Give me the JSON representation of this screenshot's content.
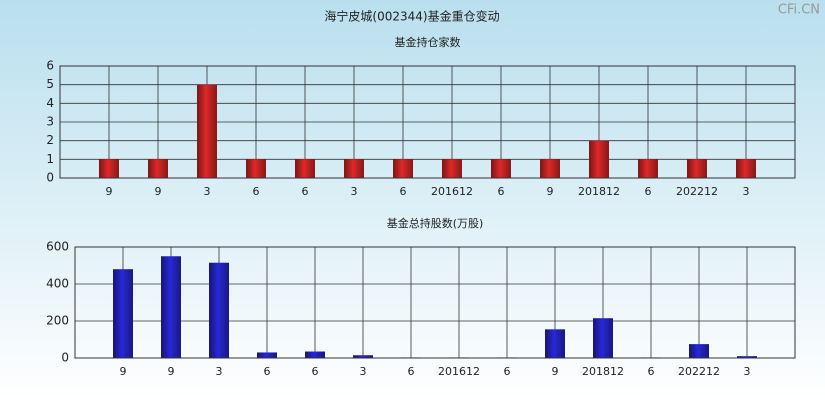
{
  "title": "海宁皮城(002344)基金重仓变动",
  "watermark": "CFi.CN",
  "chart_data": [
    {
      "type": "bar",
      "title": "基金持仓家数",
      "color": "#e02828",
      "categories": [
        "9",
        "9",
        "3",
        "6",
        "6",
        "3",
        "6",
        "201612",
        "6",
        "9",
        "201812",
        "6",
        "202212",
        "3"
      ],
      "values": [
        1,
        1,
        5,
        1,
        1,
        1,
        1,
        1,
        1,
        1,
        2,
        1,
        1,
        1
      ],
      "ylim": [
        0,
        6
      ],
      "yticks": [
        0,
        1,
        2,
        3,
        4,
        5,
        6
      ],
      "grid": true
    },
    {
      "type": "bar",
      "title": "基金总持股数(万股)",
      "color": "#2828d8",
      "categories": [
        "9",
        "9",
        "3",
        "6",
        "6",
        "3",
        "6",
        "201612",
        "6",
        "9",
        "201812",
        "6",
        "202212",
        "3"
      ],
      "values": [
        480,
        550,
        515,
        30,
        35,
        15,
        3,
        3,
        3,
        155,
        215,
        3,
        75,
        10
      ],
      "ylim": [
        0,
        600
      ],
      "yticks": [
        0,
        200,
        400,
        600
      ],
      "grid": true
    }
  ]
}
